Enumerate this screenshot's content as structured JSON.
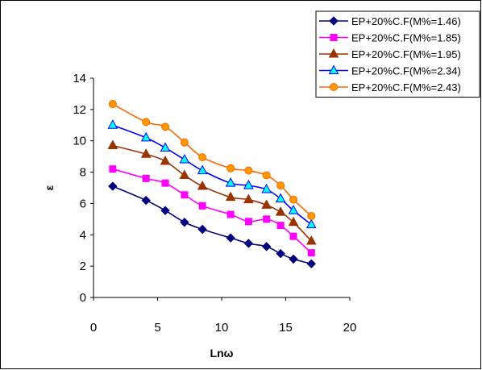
{
  "chart_data": {
    "type": "line",
    "title": "",
    "xlabel": "Lnω",
    "ylabel": "ε",
    "xlim": [
      0,
      20
    ],
    "ylim": [
      0,
      14
    ],
    "xticks": [
      0,
      5,
      10,
      15,
      20
    ],
    "yticks": [
      0,
      2,
      4,
      6,
      8,
      10,
      12,
      14
    ],
    "grid": false,
    "legend_position": "top-right",
    "x": [
      1.5,
      4.1,
      5.6,
      7.1,
      8.5,
      10.7,
      12.1,
      13.5,
      14.6,
      15.6,
      17.0
    ],
    "series": [
      {
        "name": "EP+20%C.F(M%=1.46)",
        "color": "#00007f",
        "marker": "diamond",
        "values": [
          7.1,
          6.2,
          5.55,
          4.8,
          4.35,
          3.8,
          3.45,
          3.25,
          2.8,
          2.45,
          2.15
        ]
      },
      {
        "name": "EP+20%C.F(M%=1.85)",
        "color": "#ff00ff",
        "marker": "square",
        "values": [
          8.2,
          7.6,
          7.3,
          6.55,
          5.85,
          5.3,
          4.85,
          5.0,
          4.6,
          3.9,
          2.85
        ]
      },
      {
        "name": "EP+20%C.F(M%=1.95)",
        "color": "#993300",
        "marker": "triangle",
        "values": [
          9.7,
          9.15,
          8.7,
          7.8,
          7.1,
          6.4,
          6.25,
          5.9,
          5.45,
          4.8,
          3.6
        ]
      },
      {
        "name": "EP+20%C.F(M%=2.34)",
        "color": "#0000ff",
        "marker": "triangle-open",
        "fill": "#00ffff",
        "values": [
          11.0,
          10.2,
          9.55,
          8.8,
          8.1,
          7.3,
          7.15,
          6.9,
          6.3,
          5.55,
          4.65
        ]
      },
      {
        "name": "EP+20%C.F(M%=2.43)",
        "color": "#ff6600",
        "marker": "circle",
        "fill": "#ff9900",
        "values": [
          12.35,
          11.2,
          10.9,
          9.9,
          8.95,
          8.25,
          8.1,
          7.8,
          7.15,
          6.25,
          5.2
        ]
      }
    ]
  }
}
